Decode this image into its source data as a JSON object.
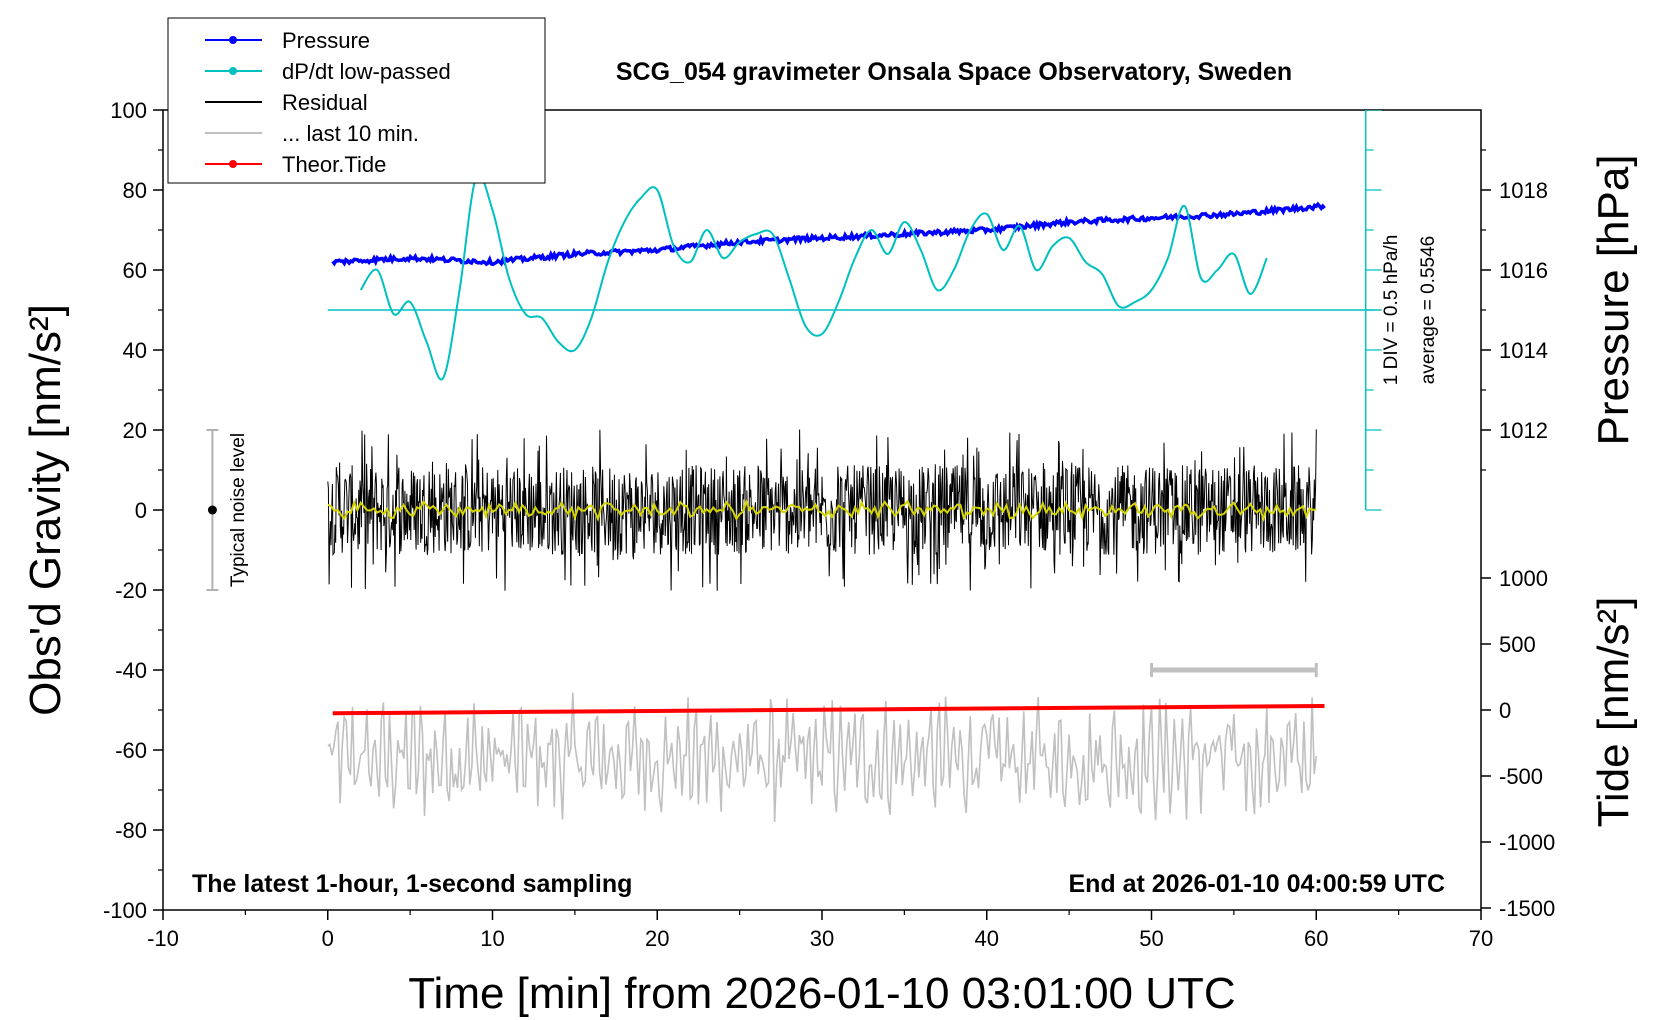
{
  "chart_data": {
    "type": "line",
    "title": "SCG_054 gravimeter Onsala Space Observatory, Sweden",
    "subtitle_left": "The latest 1-hour, 1-second sampling",
    "subtitle_right": "End at 2026-01-10 04:00:59 UTC",
    "xlabel": "Time [min] from 2026-01-10 03:01:00 UTC",
    "ylabel_left": "Obs'd Gravity [nm/s²]",
    "ylabel_right_top": "Pressure [hPa]",
    "ylabel_right_bottom": "Tide [nm/s²]",
    "xlim": [
      -10,
      70
    ],
    "ylim_left": [
      -100,
      100
    ],
    "ylim_pressure": [
      1010,
      1020
    ],
    "ylim_tide": [
      -1500,
      1000
    ],
    "x_ticks": [
      "-10",
      "0",
      "10",
      "20",
      "30",
      "40",
      "50",
      "60",
      "70"
    ],
    "y_ticks_left": [
      "-100",
      "-80",
      "-60",
      "-40",
      "-20",
      "0",
      "20",
      "40",
      "60",
      "80",
      "100"
    ],
    "y_ticks_pressure": [
      "1012",
      "1014",
      "1016",
      "1018"
    ],
    "y_ticks_tide": [
      "-1500",
      "-1000",
      "-500",
      "0",
      "500",
      "1000"
    ],
    "dpdt_scale_label": "1 DIV = 0.5 hPa/h",
    "dpdt_average_label": "average = 0.5546",
    "noise_label": "Typical noise level",
    "noise_bar": {
      "x": -7,
      "center": 0,
      "half_range": 20
    },
    "last10_bar": {
      "x_start": 50,
      "x_end": 60,
      "y": -40
    },
    "dpdt_baseline": 50,
    "dpdt_axis": {
      "x": 63,
      "y_min": 0,
      "y_max": 100
    },
    "legend": [
      {
        "label": "Pressure",
        "color": "#0000ff",
        "marker": true
      },
      {
        "label": "dP/dt low-passed",
        "color": "#00c0c0",
        "marker": true
      },
      {
        "label": "Residual",
        "color": "#000000",
        "marker": false
      },
      {
        "label": "... last 10 min.",
        "color": "#c0c0c0",
        "marker": false
      },
      {
        "label": "Theor.Tide",
        "color": "#ff0000",
        "marker": true
      }
    ],
    "series": [
      {
        "name": "Pressure",
        "color": "#0000ff",
        "axis": "pressure",
        "x": [
          0.3,
          5,
          10,
          15,
          20,
          25,
          30,
          35,
          40,
          45,
          50,
          55,
          60.5
        ],
        "y": [
          1016.2,
          1016.3,
          1016.2,
          1016.4,
          1016.5,
          1016.7,
          1016.8,
          1016.9,
          1017.0,
          1017.2,
          1017.3,
          1017.4,
          1017.6
        ]
      },
      {
        "name": "dP/dt low-passed",
        "color": "#00c0c0",
        "axis": "left",
        "x": [
          2,
          3,
          4,
          5,
          6,
          7,
          8,
          9,
          10,
          11,
          12,
          13,
          14,
          15,
          16,
          17,
          18,
          19,
          20,
          21,
          22,
          23,
          24,
          25,
          26,
          27,
          28,
          29,
          30,
          31,
          32,
          33,
          34,
          35,
          36,
          37,
          38,
          39,
          40,
          41,
          42,
          43,
          44,
          45,
          46,
          47,
          48,
          49,
          50,
          51,
          52,
          53,
          54,
          55,
          56,
          57
        ],
        "y": [
          55,
          60,
          49,
          52,
          42,
          33,
          55,
          83,
          75,
          58,
          49,
          48,
          42,
          40,
          48,
          62,
          72,
          78,
          80,
          66,
          62,
          70,
          63,
          67,
          69,
          69,
          58,
          46,
          44,
          52,
          63,
          70,
          64,
          72,
          65,
          55,
          60,
          70,
          74,
          65,
          71,
          60,
          66,
          68,
          62,
          59,
          51,
          52,
          55,
          63,
          76,
          58,
          60,
          64,
          54,
          63
        ]
      },
      {
        "name": "Theor.Tide",
        "color": "#ff0000",
        "axis": "tide",
        "x": [
          0.3,
          60.5
        ],
        "y": [
          -25,
          30
        ]
      }
    ],
    "residual_envelope": {
      "x_range": [
        0,
        60
      ],
      "approx_amplitude": 15,
      "extreme_max": 23,
      "extreme_min": -24
    },
    "last10_envelope": {
      "x_range": [
        0,
        60
      ],
      "center": -62,
      "approx_amplitude": 12,
      "extreme_max": -45,
      "extreme_min": -86
    }
  }
}
